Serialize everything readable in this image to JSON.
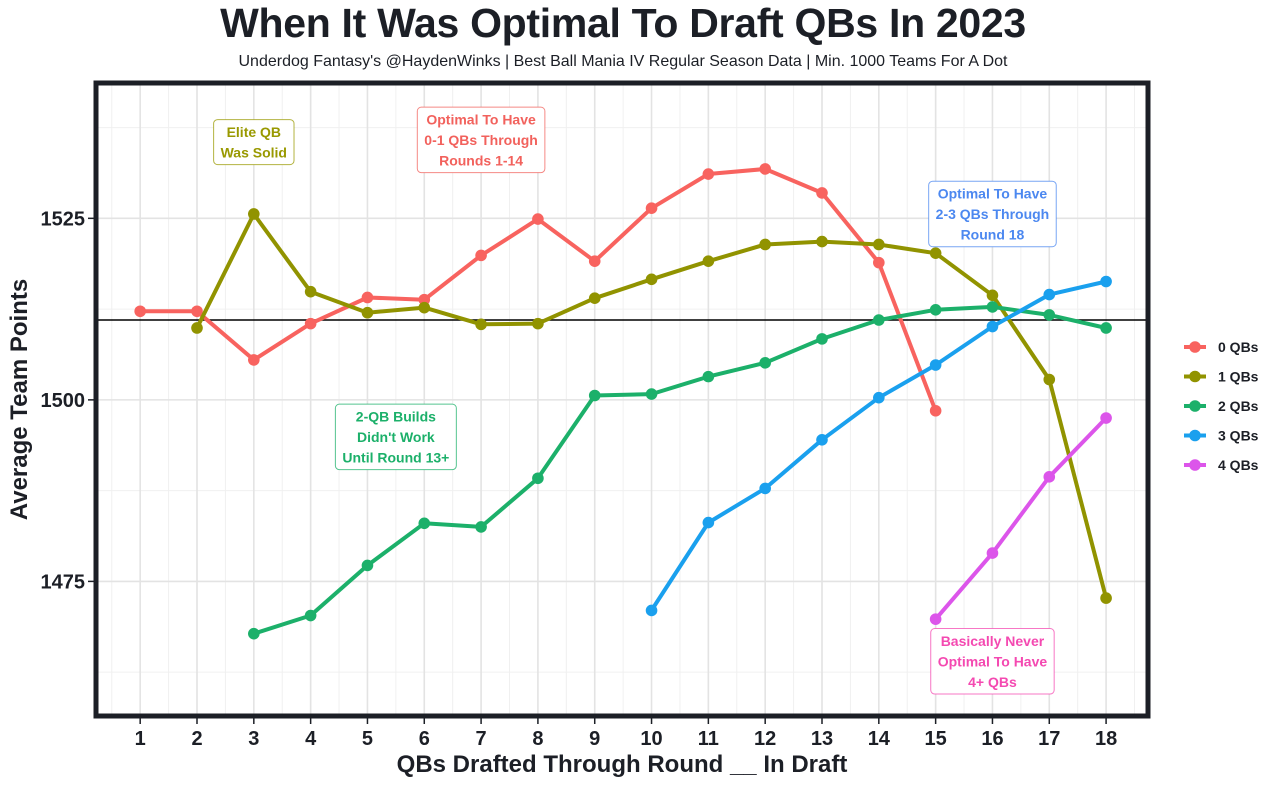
{
  "chart_data": {
    "type": "line",
    "title": "When It Was Optimal To Draft QBs In 2023",
    "subtitle": "Underdog Fantasy's @HaydenWinks | Best Ball Mania IV Regular Season Data | Min. 1000 Teams For A Dot",
    "xlabel": "QBs Drafted Through Round __ In Draft",
    "ylabel": "Average Team Points",
    "x_ticks": [
      "1",
      "2",
      "3",
      "4",
      "5",
      "6",
      "7",
      "8",
      "9",
      "10",
      "11",
      "12",
      "13",
      "14",
      "15",
      "16",
      "17",
      "18"
    ],
    "y_ticks": [
      "1475",
      "1500",
      "1525"
    ],
    "y_tick_values": [
      1475,
      1500,
      1525
    ],
    "xlim": [
      0.24,
      18.72
    ],
    "ylim": [
      1456.6,
      1543.5
    ],
    "grid": true,
    "reference_line": 1511,
    "legend_position": "right",
    "series": [
      {
        "name": "0 QBs",
        "color": "#f8635f",
        "x": [
          1,
          2,
          3,
          4,
          5,
          6,
          7,
          8,
          9,
          10,
          11,
          12,
          13,
          14,
          15
        ],
        "values": [
          1512.2,
          1512.2,
          1505.5,
          1510.5,
          1514.1,
          1513.8,
          1519.9,
          1524.9,
          1519.1,
          1526.4,
          1531.1,
          1531.8,
          1528.5,
          1518.9,
          1498.5
        ]
      },
      {
        "name": "1 QBs",
        "color": "#919300",
        "x": [
          2,
          3,
          4,
          5,
          6,
          7,
          8,
          9,
          10,
          11,
          12,
          13,
          14,
          15,
          16,
          17,
          18
        ],
        "values": [
          1509.9,
          1525.6,
          1514.9,
          1512.0,
          1512.7,
          1510.4,
          1510.5,
          1514.0,
          1516.6,
          1519.1,
          1521.4,
          1521.8,
          1521.4,
          1520.2,
          1514.4,
          1502.8,
          1472.7
        ]
      },
      {
        "name": "2 QBs",
        "color": "#1cb06a",
        "x": [
          3,
          4,
          5,
          6,
          7,
          8,
          9,
          10,
          11,
          12,
          13,
          14,
          15,
          16,
          17,
          18
        ],
        "values": [
          1467.8,
          1470.3,
          1477.2,
          1483.0,
          1482.5,
          1489.2,
          1500.6,
          1500.8,
          1503.2,
          1505.1,
          1508.4,
          1511.0,
          1512.4,
          1512.8,
          1511.7,
          1509.9
        ]
      },
      {
        "name": "3 QBs",
        "color": "#1aa0ee",
        "x": [
          10,
          11,
          12,
          13,
          14,
          15,
          16,
          17,
          18
        ],
        "values": [
          1471.0,
          1483.1,
          1487.8,
          1494.5,
          1500.3,
          1504.8,
          1510.1,
          1514.5,
          1516.3
        ]
      },
      {
        "name": "4 QBs",
        "color": "#dc55ea",
        "x": [
          15,
          16,
          17,
          18
        ],
        "values": [
          1469.8,
          1478.9,
          1489.4,
          1497.5
        ]
      }
    ],
    "annotations": [
      {
        "lines": [
          "Elite QB",
          "Was Solid"
        ],
        "color": "#999900",
        "x": 3,
        "y": 1535.5
      },
      {
        "lines": [
          "Optimal To Have",
          "0-1 QBs Through",
          "Rounds 1-14"
        ],
        "color": "#f2615c",
        "x": 7.0,
        "y": 1535.8
      },
      {
        "lines": [
          "Optimal To Have",
          "2-3 QBs Through",
          "Round 18"
        ],
        "color": "#4c88f0",
        "x": 16.0,
        "y": 1525.6
      },
      {
        "lines": [
          "2-QB Builds",
          "Didn't Work",
          "Until Round 13+"
        ],
        "color": "#1cb06a",
        "x": 5.5,
        "y": 1494.9
      },
      {
        "lines": [
          "Basically Never",
          "Optimal To Have",
          "4+ QBs"
        ],
        "color": "#f449b1",
        "x": 16.0,
        "y": 1464.0
      }
    ]
  }
}
